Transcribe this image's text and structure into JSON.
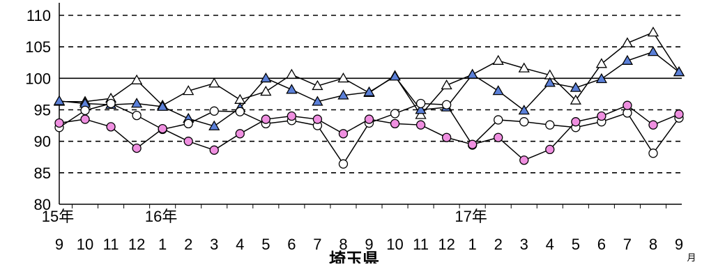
{
  "chart_data": {
    "type": "line",
    "title": "埼玉県",
    "x_unit": "月",
    "ylim": [
      80,
      110
    ],
    "yticks": [
      80,
      85,
      90,
      95,
      100,
      105,
      110
    ],
    "grid": "dashed horizontal, solid line at 100",
    "categories": [
      "9",
      "10",
      "11",
      "12",
      "1",
      "2",
      "3",
      "4",
      "5",
      "6",
      "7",
      "8",
      "9",
      "10",
      "11",
      "12",
      "1",
      "2",
      "3",
      "4",
      "5",
      "6",
      "7",
      "8",
      "9"
    ],
    "year_labels": [
      {
        "label": "15年",
        "at_index": 0
      },
      {
        "label": "16年",
        "at_index": 4
      },
      {
        "label": "17年",
        "at_index": 16
      }
    ],
    "series": [
      {
        "marker": "triangle-open",
        "values": [
          96.3,
          96.3,
          96.8,
          99.7,
          95.7,
          98.0,
          99.2,
          96.6,
          97.9,
          100.6,
          98.8,
          100.0,
          97.7,
          100.4,
          94.2,
          98.9,
          100.6,
          102.8,
          101.6,
          100.5,
          96.5,
          102.3,
          105.6,
          107.3,
          101.0
        ]
      },
      {
        "marker": "triangle-filled",
        "values": [
          96.4,
          96.0,
          95.8,
          96.0,
          95.5,
          93.6,
          92.4,
          95.3,
          100.0,
          98.2,
          96.3,
          97.3,
          97.8,
          100.3,
          95.0,
          95.4,
          100.6,
          98.0,
          94.9,
          99.3,
          98.5,
          99.9,
          102.8,
          104.2,
          101.0
        ]
      },
      {
        "marker": "circle-open",
        "values": [
          92.2,
          94.9,
          96.0,
          94.1,
          91.9,
          92.8,
          94.8,
          94.7,
          92.8,
          93.3,
          92.5,
          86.4,
          92.9,
          94.4,
          96.0,
          95.8,
          89.4,
          93.4,
          93.1,
          92.6,
          92.2,
          93.1,
          94.5,
          88.1,
          93.7
        ]
      },
      {
        "marker": "circle-filled",
        "values": [
          92.9,
          93.5,
          92.3,
          88.9,
          92.0,
          90.0,
          88.6,
          91.2,
          93.5,
          94.0,
          93.5,
          91.2,
          93.5,
          92.8,
          92.6,
          90.6,
          89.5,
          90.6,
          87.0,
          88.7,
          93.1,
          94.0,
          95.7,
          92.6,
          94.3
        ]
      }
    ]
  },
  "colors": {
    "filled_triangle": "#5b80d8",
    "filled_circle": "#ef8fe0",
    "line": "#000000",
    "open_marker": "#ffffff"
  }
}
